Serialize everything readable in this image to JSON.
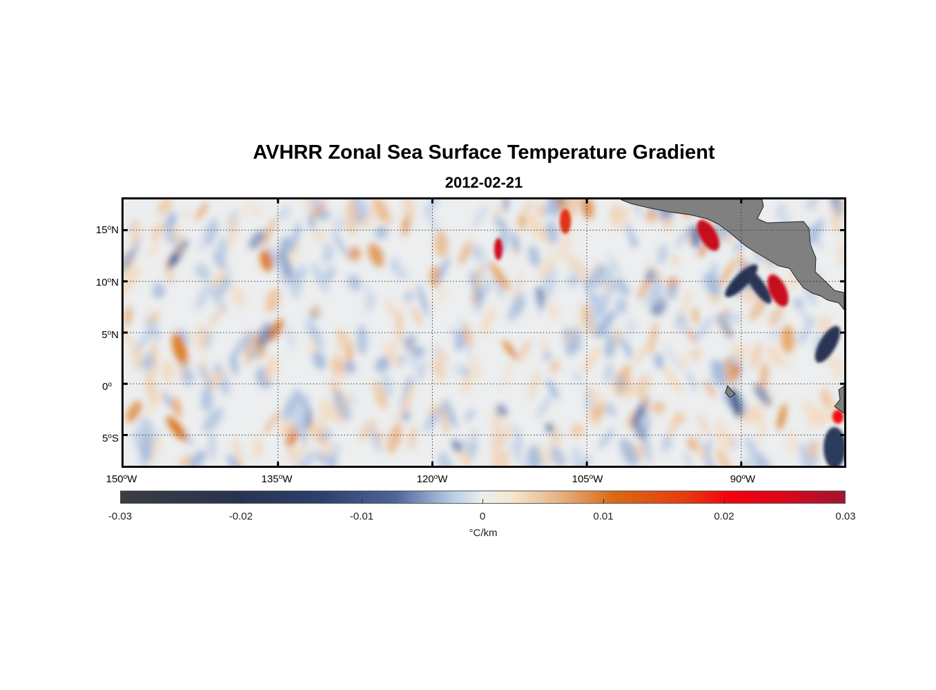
{
  "title": "AVHRR Zonal Sea Surface Temperature Gradient",
  "subtitle": "2012-02-21",
  "map": {
    "lon_range": [
      -150,
      -80
    ],
    "lat_range": [
      -8,
      18
    ],
    "grid": "dotted",
    "land_color": "#808080",
    "lat_labels": [
      {
        "deg": "15",
        "hemi": "N"
      },
      {
        "deg": "10",
        "hemi": "N"
      },
      {
        "deg": "5",
        "hemi": "N"
      },
      {
        "deg": "0",
        "hemi": ""
      },
      {
        "deg": "5",
        "hemi": "S"
      }
    ],
    "lon_labels": [
      {
        "deg": "150",
        "hemi": "W"
      },
      {
        "deg": "135",
        "hemi": "W"
      },
      {
        "deg": "120",
        "hemi": "W"
      },
      {
        "deg": "105",
        "hemi": "W"
      },
      {
        "deg": "90",
        "hemi": "W"
      }
    ]
  },
  "colorbar": {
    "ticks": [
      "-0.03",
      "-0.02",
      "-0.01",
      "0",
      "0.01",
      "0.02",
      "0.03"
    ],
    "unit": "°C/km",
    "range": [
      -0.03,
      0.03
    ]
  }
}
